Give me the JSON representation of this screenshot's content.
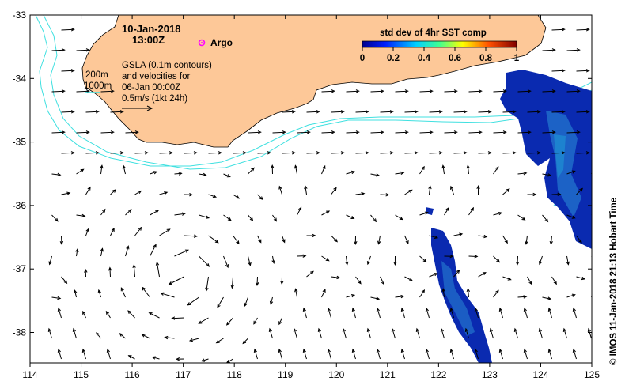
{
  "map": {
    "date": "10-Jan-2018",
    "time": "13:00Z",
    "argo_label": "Argo",
    "contours_label": "200m\n1000m",
    "desc_lines": [
      "GSLA (0.1m contours)",
      "and velocities for",
      "06-Jan 00:00Z",
      "0.5m/s (1kt 24h)"
    ],
    "colorbar": {
      "title": "std dev of 4hr SST comp",
      "ticks": [
        "0",
        "0.2",
        "0.4",
        "0.6",
        "0.8",
        "1"
      ]
    },
    "x_axis_ticks": [
      "114",
      "115",
      "116",
      "117",
      "118",
      "119",
      "120",
      "121",
      "122",
      "123",
      "124",
      "125"
    ],
    "y_axis_ticks": [
      "-33",
      "-34",
      "-35",
      "-36",
      "-37",
      "-38"
    ],
    "credit": "© IMOS 11-Jan-2018 21:13 Hobart Time",
    "colors": {
      "land": "#fdc898",
      "contour": "#40e0e0",
      "argo": "#ff00ff",
      "sst_low": "#0a1ea0"
    }
  }
}
